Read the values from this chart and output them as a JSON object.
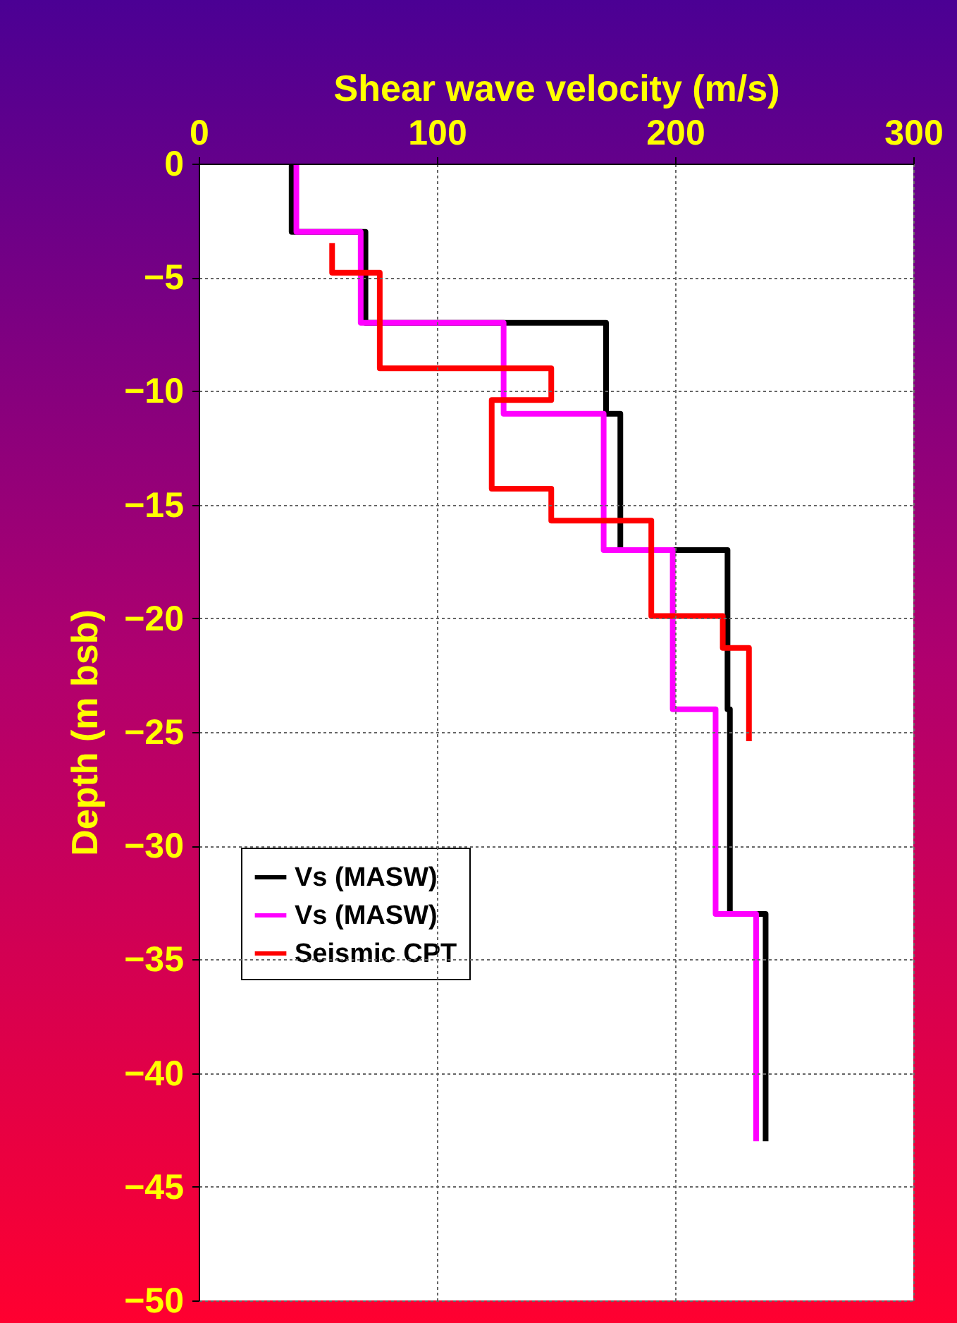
{
  "chart_data": {
    "type": "line",
    "xlabel": "Shear wave velocity (m/s)",
    "ylabel": "Depth (m bsb)",
    "xlim": [
      0,
      300
    ],
    "xticks": [
      0,
      100,
      200,
      300
    ],
    "ylim": [
      -50,
      0
    ],
    "yticks": [
      0,
      -5,
      -10,
      -15,
      -20,
      -25,
      -30,
      -35,
      -40,
      -45,
      -50
    ],
    "grid": true,
    "legend": "left",
    "line_style": "solid",
    "marker": "none",
    "series": [
      {
        "name": "Vs (MASW)",
        "color": "#000000",
        "x": [
          39,
          39,
          70,
          70,
          171,
          171,
          177,
          177,
          222,
          222,
          223,
          223,
          238,
          238
        ],
        "values": [
          0,
          -3,
          -3,
          -7,
          -7,
          -11,
          -11,
          -17,
          -17,
          -24,
          -24,
          -33,
          -33,
          -43
        ]
      },
      {
        "name": "Vs (MASW)",
        "color": "#ff00ff",
        "x": [
          41,
          41,
          68,
          68,
          128,
          128,
          170,
          170,
          199,
          199,
          217,
          217,
          234,
          234
        ],
        "values": [
          0,
          -3,
          -3,
          -7,
          -7,
          -11,
          -11,
          -17,
          -17,
          -24,
          -24,
          -33,
          -33,
          -43
        ]
      },
      {
        "name": "Seismic CPT",
        "color": "#ff0000",
        "x": [
          56,
          56,
          76,
          76,
          148,
          148,
          123,
          123,
          148,
          148,
          190,
          190,
          220,
          220,
          231,
          231
        ],
        "values": [
          -3.5,
          -4.8,
          -4.8,
          -9,
          -9,
          -10.4,
          -10.4,
          -14.3,
          -14.3,
          -15.7,
          -15.7,
          -19.9,
          -19.9,
          -21.3,
          -21.3,
          -25.4
        ]
      }
    ]
  }
}
